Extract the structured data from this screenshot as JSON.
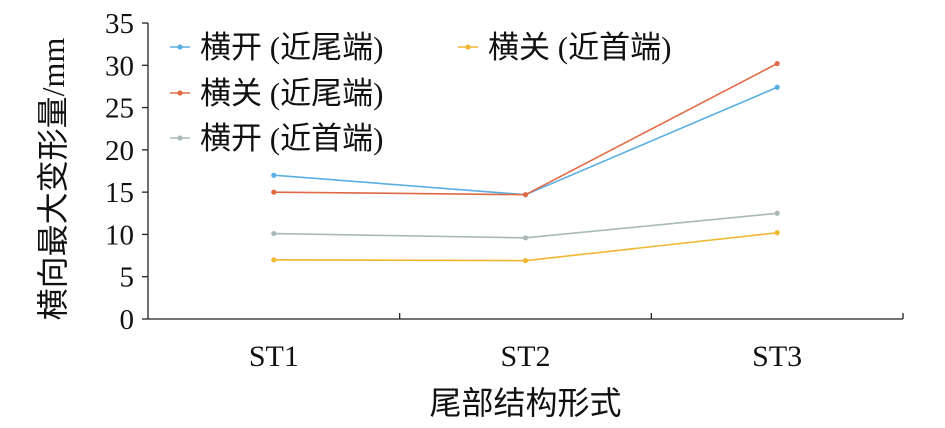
{
  "chart_data": {
    "type": "line",
    "categories": [
      "ST1",
      "ST2",
      "ST3"
    ],
    "series": [
      {
        "name": "横开 (近尾端)",
        "color": "#5aafe3",
        "values": [
          17.0,
          14.7,
          27.4
        ]
      },
      {
        "name": "横关 (近尾端)",
        "color": "#e06a45",
        "values": [
          15.0,
          14.7,
          30.2
        ]
      },
      {
        "name": "横开 (近首端)",
        "color": "#a9b8b8",
        "values": [
          10.1,
          9.6,
          12.5
        ]
      },
      {
        "name": "横关 (近首端)",
        "color": "#f0b830",
        "values": [
          7.0,
          6.9,
          10.2
        ]
      }
    ],
    "xlabel": "尾部结构形式",
    "ylabel": "横向最大变形量/mm",
    "ylim": [
      0,
      35
    ],
    "yticks": [
      0,
      5,
      10,
      15,
      20,
      25,
      30,
      35
    ],
    "grid": false,
    "legend_position": "top-left"
  }
}
